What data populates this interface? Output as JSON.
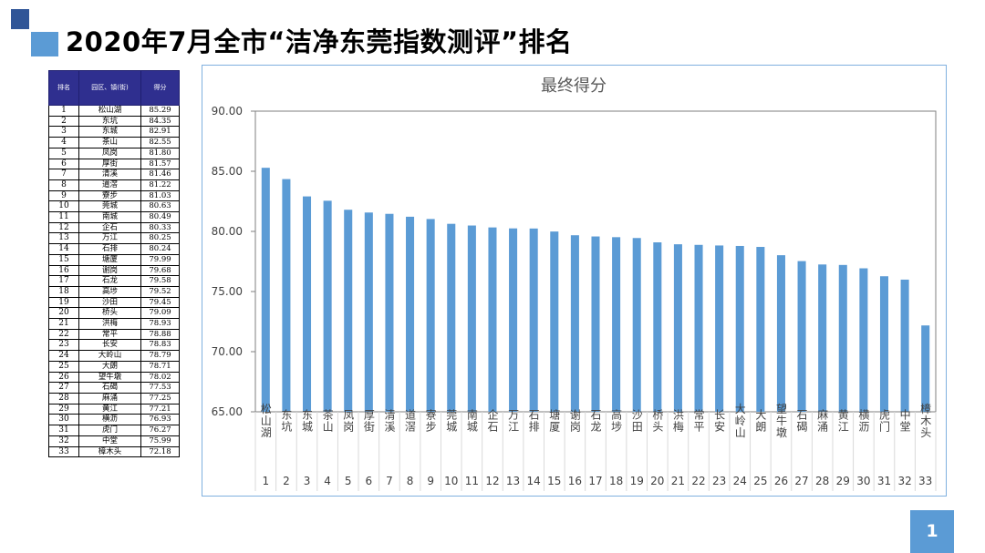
{
  "page": {
    "title": "2020年7月全市“洁净东莞指数测评”排名",
    "page_number": "1"
  },
  "table": {
    "headers": {
      "rank": "排名",
      "region": "园区、镇(街)",
      "score": "得分"
    },
    "rows": [
      {
        "rank": "1",
        "name": "松山湖",
        "score": "85.29"
      },
      {
        "rank": "2",
        "name": "东坑",
        "score": "84.35"
      },
      {
        "rank": "3",
        "name": "东城",
        "score": "82.91"
      },
      {
        "rank": "4",
        "name": "茶山",
        "score": "82.55"
      },
      {
        "rank": "5",
        "name": "凤岗",
        "score": "81.80"
      },
      {
        "rank": "6",
        "name": "厚街",
        "score": "81.57"
      },
      {
        "rank": "7",
        "name": "清溪",
        "score": "81.46"
      },
      {
        "rank": "8",
        "name": "道滘",
        "score": "81.22"
      },
      {
        "rank": "9",
        "name": "寮步",
        "score": "81.03"
      },
      {
        "rank": "10",
        "name": "莞城",
        "score": "80.63"
      },
      {
        "rank": "11",
        "name": "南城",
        "score": "80.49"
      },
      {
        "rank": "12",
        "name": "企石",
        "score": "80.33"
      },
      {
        "rank": "13",
        "name": "万江",
        "score": "80.25"
      },
      {
        "rank": "14",
        "name": "石排",
        "score": "80.24"
      },
      {
        "rank": "15",
        "name": "塘厦",
        "score": "79.99"
      },
      {
        "rank": "16",
        "name": "谢岗",
        "score": "79.68"
      },
      {
        "rank": "17",
        "name": "石龙",
        "score": "79.58"
      },
      {
        "rank": "18",
        "name": "高埗",
        "score": "79.52"
      },
      {
        "rank": "19",
        "name": "沙田",
        "score": "79.45"
      },
      {
        "rank": "20",
        "name": "桥头",
        "score": "79.09"
      },
      {
        "rank": "21",
        "name": "洪梅",
        "score": "78.93"
      },
      {
        "rank": "22",
        "name": "常平",
        "score": "78.88"
      },
      {
        "rank": "23",
        "name": "长安",
        "score": "78.83"
      },
      {
        "rank": "24",
        "name": "大岭山",
        "score": "78.79"
      },
      {
        "rank": "25",
        "name": "大朗",
        "score": "78.71"
      },
      {
        "rank": "26",
        "name": "望牛墩",
        "score": "78.02"
      },
      {
        "rank": "27",
        "name": "石碣",
        "score": "77.53"
      },
      {
        "rank": "28",
        "name": "麻涌",
        "score": "77.25"
      },
      {
        "rank": "29",
        "name": "黄江",
        "score": "77.21"
      },
      {
        "rank": "30",
        "name": "横沥",
        "score": "76.93"
      },
      {
        "rank": "31",
        "name": "虎门",
        "score": "76.27"
      },
      {
        "rank": "32",
        "name": "中堂",
        "score": "75.99"
      },
      {
        "rank": "33",
        "name": "樟木头",
        "score": "72.18"
      }
    ]
  },
  "chart_data": {
    "type": "bar",
    "title": "最终得分",
    "categories": [
      "松山湖",
      "东坑",
      "东城",
      "茶山",
      "凤岗",
      "厚街",
      "清溪",
      "道滘",
      "寮步",
      "莞城",
      "南城",
      "企石",
      "万江",
      "石排",
      "塘厦",
      "谢岗",
      "石龙",
      "高埗",
      "沙田",
      "桥头",
      "洪梅",
      "常平",
      "长安",
      "大岭山",
      "大朗",
      "望牛墩",
      "石碣",
      "麻涌",
      "黄江",
      "横沥",
      "虎门",
      "中堂",
      "樟木头"
    ],
    "ranks": [
      "1",
      "2",
      "3",
      "4",
      "5",
      "6",
      "7",
      "8",
      "9",
      "10",
      "11",
      "12",
      "13",
      "14",
      "15",
      "16",
      "17",
      "18",
      "19",
      "20",
      "21",
      "22",
      "23",
      "24",
      "25",
      "26",
      "27",
      "28",
      "29",
      "30",
      "31",
      "32",
      "33"
    ],
    "values": [
      85.29,
      84.35,
      82.91,
      82.55,
      81.8,
      81.57,
      81.46,
      81.22,
      81.03,
      80.63,
      80.49,
      80.33,
      80.25,
      80.24,
      79.99,
      79.68,
      79.58,
      79.52,
      79.45,
      79.09,
      78.93,
      78.88,
      78.83,
      78.79,
      78.71,
      78.02,
      77.53,
      77.25,
      77.21,
      76.93,
      76.27,
      75.99,
      72.18
    ],
    "ylim": [
      65,
      90
    ],
    "yticks": [
      "65.00",
      "70.00",
      "75.00",
      "80.00",
      "85.00",
      "90.00"
    ],
    "bar_color": "#5B9BD5",
    "grid": false,
    "legend": "none"
  }
}
